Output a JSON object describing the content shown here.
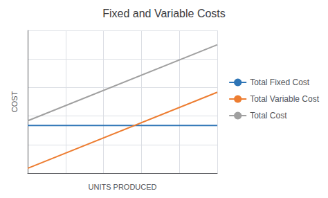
{
  "chart_data": {
    "type": "line",
    "title": "Fixed and Variable Costs",
    "xlabel": "UNITS PRODUCED",
    "ylabel": "COST",
    "x": [
      0,
      10
    ],
    "series": [
      {
        "name": "Total Fixed Cost",
        "color": "#2E75B6",
        "values": [
          5,
          5
        ]
      },
      {
        "name": "Total Variable Cost",
        "color": "#ED7D31",
        "values": [
          0.5,
          8.5
        ]
      },
      {
        "name": "Total Cost",
        "color": "#A0A0A0",
        "values": [
          5.5,
          13.5
        ]
      }
    ],
    "xlim": [
      0,
      10
    ],
    "ylim": [
      0,
      15
    ],
    "xticks": [
      2,
      4,
      6,
      8,
      10
    ],
    "yticks": [
      3,
      6,
      9,
      12,
      15
    ],
    "grid": true,
    "legend": "right",
    "tick_labels": false
  }
}
